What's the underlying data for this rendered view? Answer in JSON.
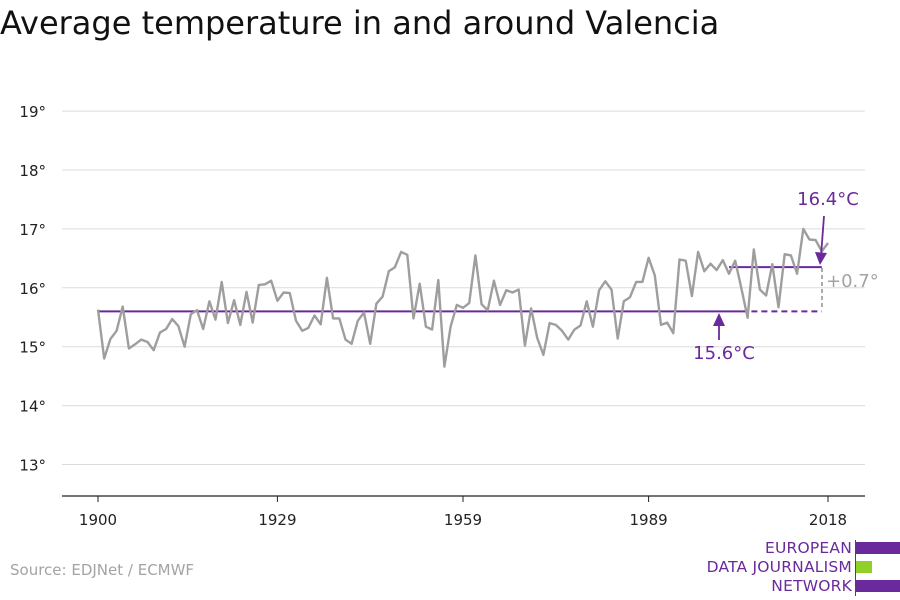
{
  "title": "Average temperature in and around Valencia",
  "source": "Source: EDJNet / ECMWF",
  "logo": {
    "lines": [
      "EUROPEAN",
      "DATA JOURNALISM",
      "NETWORK"
    ],
    "colors": {
      "purple": "#6a2a9b",
      "green": "#8fd129"
    }
  },
  "colors": {
    "series": "#9e9e9e",
    "reference": "#6a2a9b",
    "difference": "#a3a3a3",
    "grid": "#dcdcdc",
    "axis": "#222222"
  },
  "chart_data": {
    "type": "line",
    "title": "Average temperature in and around Valencia",
    "xlabel": "",
    "ylabel": "",
    "xlim": [
      1900,
      2018
    ],
    "ylim": [
      12.5,
      19.3
    ],
    "x_ticks": [
      1900,
      1929,
      1959,
      1989,
      2018
    ],
    "x_tick_labels": [
      "1900",
      "1929",
      "1959",
      "1989",
      "2018"
    ],
    "y_ticks": [
      13,
      14,
      15,
      16,
      17,
      18,
      19
    ],
    "y_tick_labels": [
      "13°",
      "14°",
      "15°",
      "16°",
      "17°",
      "18°",
      "19°"
    ],
    "grid": true,
    "series": [
      {
        "x": [
          1900,
          1901,
          1902,
          1903,
          1904,
          1905,
          1906,
          1907,
          1908,
          1909,
          1910,
          1911,
          1912,
          1913,
          1914,
          1915,
          1916,
          1917,
          1918,
          1919,
          1920,
          1921,
          1922,
          1923,
          1924,
          1925,
          1926,
          1927,
          1928,
          1929,
          1930,
          1931,
          1932,
          1933,
          1934,
          1935,
          1936,
          1937,
          1938,
          1939,
          1940,
          1941,
          1942,
          1943,
          1944,
          1945,
          1946,
          1947,
          1948,
          1949,
          1950,
          1951,
          1952,
          1953,
          1954,
          1955,
          1956,
          1957,
          1958,
          1959,
          1960,
          1961,
          1962,
          1963,
          1964,
          1965,
          1966,
          1967,
          1968,
          1969,
          1970,
          1971,
          1972,
          1973,
          1974,
          1975,
          1976,
          1977,
          1978,
          1979,
          1980,
          1981,
          1982,
          1983,
          1984,
          1985,
          1986,
          1987,
          1988,
          1989,
          1990,
          1991,
          1992,
          1993,
          1994,
          1995,
          1996,
          1997,
          1998,
          1999,
          2000,
          2001,
          2002,
          2003,
          2004,
          2005,
          2006,
          2007,
          2008,
          2009,
          2010,
          2011,
          2012,
          2013,
          2014,
          2015,
          2016,
          2017,
          2018
        ],
        "y": [
          15.63,
          14.8,
          15.13,
          15.27,
          15.68,
          14.97,
          15.04,
          15.12,
          15.08,
          14.94,
          15.24,
          15.3,
          15.47,
          15.35,
          15.0,
          15.55,
          15.62,
          15.3,
          15.77,
          15.46,
          16.1,
          15.4,
          15.79,
          15.37,
          15.93,
          15.41,
          16.05,
          16.06,
          16.12,
          15.78,
          15.92,
          15.91,
          15.44,
          15.27,
          15.32,
          15.53,
          15.38,
          16.17,
          15.48,
          15.48,
          15.12,
          15.05,
          15.44,
          15.58,
          15.05,
          15.73,
          15.85,
          16.28,
          16.35,
          16.61,
          16.56,
          15.48,
          16.07,
          15.34,
          15.29,
          16.13,
          14.66,
          15.34,
          15.71,
          15.66,
          15.74,
          16.55,
          15.72,
          15.62,
          16.12,
          15.71,
          15.96,
          15.92,
          15.97,
          15.02,
          15.65,
          15.15,
          14.86,
          15.4,
          15.37,
          15.27,
          15.12,
          15.29,
          15.36,
          15.77,
          15.34,
          15.96,
          16.11,
          15.97,
          15.14,
          15.77,
          15.84,
          16.1,
          16.1,
          16.51,
          16.21,
          15.37,
          15.41,
          15.23,
          16.48,
          16.46,
          15.86,
          16.61,
          16.28,
          16.41,
          16.3,
          16.47,
          16.24,
          16.46,
          15.99,
          15.49,
          16.65,
          15.97,
          15.87,
          16.4,
          15.67,
          16.57,
          16.55,
          16.24,
          17.0,
          16.82,
          16.81,
          16.62,
          16.76
        ]
      }
    ],
    "reference_lines": [
      {
        "y": 15.6,
        "x_start": 1900,
        "x_end": 2004,
        "style": "solid",
        "label": "15.6°C"
      },
      {
        "y": 15.6,
        "x_start": 2004,
        "x_end": 2017,
        "style": "dashed"
      },
      {
        "y": 16.35,
        "x_start": 2002,
        "x_end": 2017,
        "style": "solid",
        "label": "16.4°C"
      }
    ],
    "annotations": [
      {
        "text": "16.4°C"
      },
      {
        "text": "15.6°C"
      },
      {
        "text": "+0.7°"
      }
    ]
  }
}
